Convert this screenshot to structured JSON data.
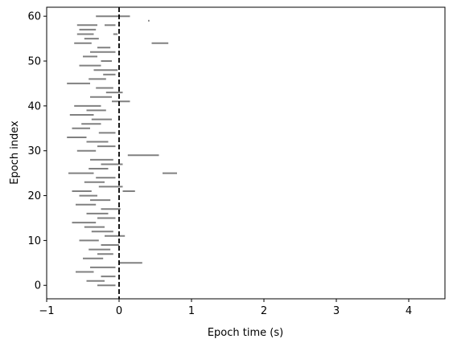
{
  "chart_data": {
    "type": "raster",
    "xlabel": "Epoch time (s)",
    "ylabel": "Epoch index",
    "xlim": [
      -1,
      4.5
    ],
    "ylim": [
      -3,
      62
    ],
    "x_ticks": [
      -1,
      0,
      1,
      2,
      3,
      4
    ],
    "x_tick_labels": [
      "−1",
      "0",
      "1",
      "2",
      "3",
      "4"
    ],
    "y_ticks": [
      0,
      10,
      20,
      30,
      40,
      50,
      60
    ],
    "y_tick_labels": [
      "0",
      "10",
      "20",
      "30",
      "40",
      "50",
      "60"
    ],
    "event_line": {
      "x": 0,
      "style": "dashed",
      "color": "#000000"
    },
    "segment_color": "#808080",
    "segments": [
      {
        "epoch": 60,
        "start": -0.32,
        "end": 0.15
      },
      {
        "epoch": 59,
        "start": 0.4,
        "end": 0.42
      },
      {
        "epoch": 58,
        "start": -0.58,
        "end": -0.3
      },
      {
        "epoch": 58,
        "start": -0.2,
        "end": -0.05
      },
      {
        "epoch": 57,
        "start": -0.55,
        "end": -0.32
      },
      {
        "epoch": 56,
        "start": -0.58,
        "end": -0.35
      },
      {
        "epoch": 56,
        "start": -0.08,
        "end": -0.02
      },
      {
        "epoch": 55,
        "start": -0.48,
        "end": -0.28
      },
      {
        "epoch": 54,
        "start": -0.62,
        "end": -0.38
      },
      {
        "epoch": 54,
        "start": 0.45,
        "end": 0.68
      },
      {
        "epoch": 53,
        "start": -0.3,
        "end": -0.12
      },
      {
        "epoch": 52,
        "start": -0.4,
        "end": -0.05
      },
      {
        "epoch": 51,
        "start": -0.5,
        "end": -0.3
      },
      {
        "epoch": 50,
        "start": -0.25,
        "end": -0.1
      },
      {
        "epoch": 49,
        "start": -0.55,
        "end": -0.25
      },
      {
        "epoch": 48,
        "start": -0.35,
        "end": -0.02
      },
      {
        "epoch": 47,
        "start": -0.22,
        "end": -0.05
      },
      {
        "epoch": 46,
        "start": -0.42,
        "end": -0.18
      },
      {
        "epoch": 45,
        "start": -0.72,
        "end": -0.4
      },
      {
        "epoch": 44,
        "start": -0.32,
        "end": -0.08
      },
      {
        "epoch": 43,
        "start": -0.18,
        "end": 0.05
      },
      {
        "epoch": 42,
        "start": -0.4,
        "end": -0.1
      },
      {
        "epoch": 41,
        "start": -0.1,
        "end": 0.15
      },
      {
        "epoch": 40,
        "start": -0.62,
        "end": -0.25
      },
      {
        "epoch": 39,
        "start": -0.45,
        "end": -0.18
      },
      {
        "epoch": 38,
        "start": -0.68,
        "end": -0.35
      },
      {
        "epoch": 37,
        "start": -0.38,
        "end": -0.1
      },
      {
        "epoch": 36,
        "start": -0.52,
        "end": -0.25
      },
      {
        "epoch": 35,
        "start": -0.65,
        "end": -0.4
      },
      {
        "epoch": 34,
        "start": -0.28,
        "end": -0.05
      },
      {
        "epoch": 33,
        "start": -0.72,
        "end": -0.45
      },
      {
        "epoch": 32,
        "start": -0.45,
        "end": -0.15
      },
      {
        "epoch": 31,
        "start": -0.3,
        "end": -0.05
      },
      {
        "epoch": 30,
        "start": -0.58,
        "end": -0.32
      },
      {
        "epoch": 29,
        "start": 0.12,
        "end": 0.55
      },
      {
        "epoch": 28,
        "start": -0.4,
        "end": -0.08
      },
      {
        "epoch": 27,
        "start": -0.25,
        "end": 0.05
      },
      {
        "epoch": 26,
        "start": -0.42,
        "end": -0.15
      },
      {
        "epoch": 25,
        "start": 0.6,
        "end": 0.8
      },
      {
        "epoch": 25,
        "start": -0.7,
        "end": -0.35
      },
      {
        "epoch": 24,
        "start": -0.32,
        "end": -0.05
      },
      {
        "epoch": 23,
        "start": -0.48,
        "end": -0.2
      },
      {
        "epoch": 22,
        "start": -0.28,
        "end": 0.05
      },
      {
        "epoch": 21,
        "start": 0.05,
        "end": 0.22
      },
      {
        "epoch": 21,
        "start": -0.65,
        "end": -0.38
      },
      {
        "epoch": 20,
        "start": -0.55,
        "end": -0.3
      },
      {
        "epoch": 19,
        "start": -0.4,
        "end": -0.12
      },
      {
        "epoch": 18,
        "start": -0.6,
        "end": -0.32
      },
      {
        "epoch": 17,
        "start": -0.25,
        "end": 0.02
      },
      {
        "epoch": 16,
        "start": -0.45,
        "end": -0.15
      },
      {
        "epoch": 15,
        "start": -0.3,
        "end": -0.05
      },
      {
        "epoch": 14,
        "start": -0.65,
        "end": -0.32
      },
      {
        "epoch": 13,
        "start": -0.48,
        "end": -0.2
      },
      {
        "epoch": 12,
        "start": -0.38,
        "end": -0.08
      },
      {
        "epoch": 11,
        "start": -0.2,
        "end": 0.08
      },
      {
        "epoch": 10,
        "start": -0.55,
        "end": -0.28
      },
      {
        "epoch": 9,
        "start": -0.25,
        "end": 0.0
      },
      {
        "epoch": 8,
        "start": -0.42,
        "end": -0.12
      },
      {
        "epoch": 7,
        "start": -0.3,
        "end": -0.08
      },
      {
        "epoch": 6,
        "start": -0.5,
        "end": -0.22
      },
      {
        "epoch": 5,
        "start": 0.0,
        "end": 0.32
      },
      {
        "epoch": 4,
        "start": -0.4,
        "end": -0.05
      },
      {
        "epoch": 3,
        "start": -0.6,
        "end": -0.35
      },
      {
        "epoch": 2,
        "start": -0.25,
        "end": -0.05
      },
      {
        "epoch": 1,
        "start": -0.45,
        "end": -0.2
      },
      {
        "epoch": 0,
        "start": -0.3,
        "end": -0.05
      }
    ]
  }
}
